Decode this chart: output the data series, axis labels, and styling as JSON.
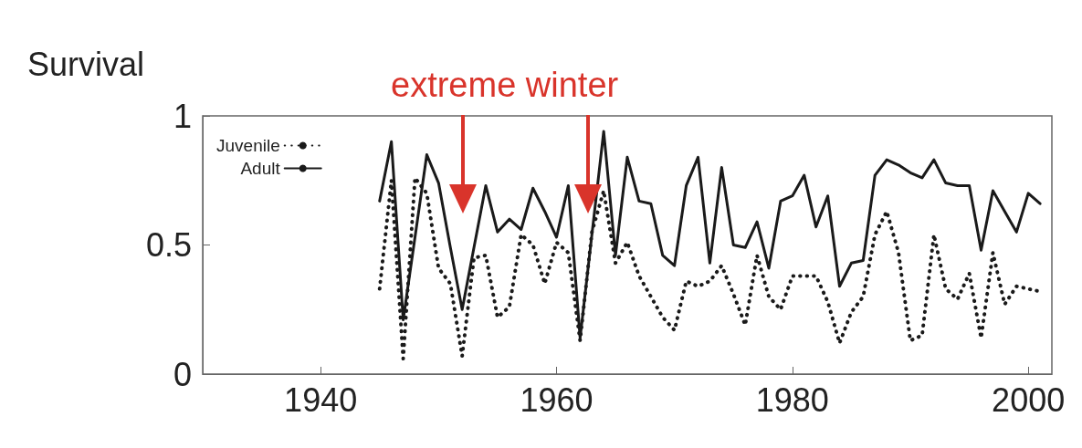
{
  "chart_data": {
    "type": "line",
    "ylabel": "Survival",
    "annotations": [
      "extreme winter"
    ],
    "x": [
      1945,
      1946,
      1947,
      1948,
      1949,
      1950,
      1951,
      1952,
      1953,
      1954,
      1955,
      1956,
      1957,
      1958,
      1959,
      1960,
      1961,
      1962,
      1963,
      1964,
      1965,
      1966,
      1967,
      1968,
      1969,
      1970,
      1971,
      1972,
      1973,
      1974,
      1975,
      1976,
      1977,
      1978,
      1979,
      1980,
      1981,
      1982,
      1983,
      1984,
      1985,
      1986,
      1987,
      1988,
      1989,
      1990,
      1991,
      1992,
      1993,
      1994,
      1995,
      1996,
      1997,
      1998,
      1999,
      2000,
      2001
    ],
    "series": [
      {
        "name": "Juvenile",
        "color": "#1a1a1a",
        "line_style": "dotted",
        "values": [
          0.33,
          0.75,
          0.06,
          0.76,
          0.7,
          0.41,
          0.35,
          0.07,
          0.45,
          0.46,
          0.22,
          0.26,
          0.54,
          0.5,
          0.35,
          0.51,
          0.47,
          0.13,
          0.55,
          0.71,
          0.43,
          0.51,
          0.38,
          0.3,
          0.22,
          0.17,
          0.36,
          0.34,
          0.36,
          0.42,
          0.31,
          0.19,
          0.46,
          0.3,
          0.25,
          0.38,
          0.38,
          0.38,
          0.28,
          0.12,
          0.24,
          0.3,
          0.54,
          0.63,
          0.47,
          0.13,
          0.15,
          0.54,
          0.33,
          0.29,
          0.39,
          0.14,
          0.47,
          0.27,
          0.34,
          0.33,
          0.32
        ]
      },
      {
        "name": "Adult",
        "color": "#1a1a1a",
        "line_style": "solid",
        "values": [
          0.67,
          0.9,
          0.21,
          0.53,
          0.85,
          0.74,
          0.49,
          0.25,
          0.49,
          0.73,
          0.55,
          0.6,
          0.56,
          0.72,
          0.63,
          0.53,
          0.73,
          0.14,
          0.54,
          0.94,
          0.46,
          0.84,
          0.67,
          0.66,
          0.46,
          0.42,
          0.73,
          0.84,
          0.43,
          0.8,
          0.5,
          0.49,
          0.59,
          0.41,
          0.67,
          0.69,
          0.77,
          0.57,
          0.69,
          0.34,
          0.43,
          0.44,
          0.77,
          0.83,
          0.81,
          0.78,
          0.76,
          0.83,
          0.74,
          0.73,
          0.73,
          0.48,
          0.71,
          0.63,
          0.55,
          0.7,
          0.66
        ]
      }
    ],
    "xlim": [
      1930,
      2002
    ],
    "xticks": [
      1940,
      1960,
      1980,
      2000
    ],
    "ylim": [
      0,
      1
    ],
    "yticks": [
      0,
      0.5,
      1
    ],
    "grid": false,
    "legend": "top left",
    "marker": "none"
  }
}
